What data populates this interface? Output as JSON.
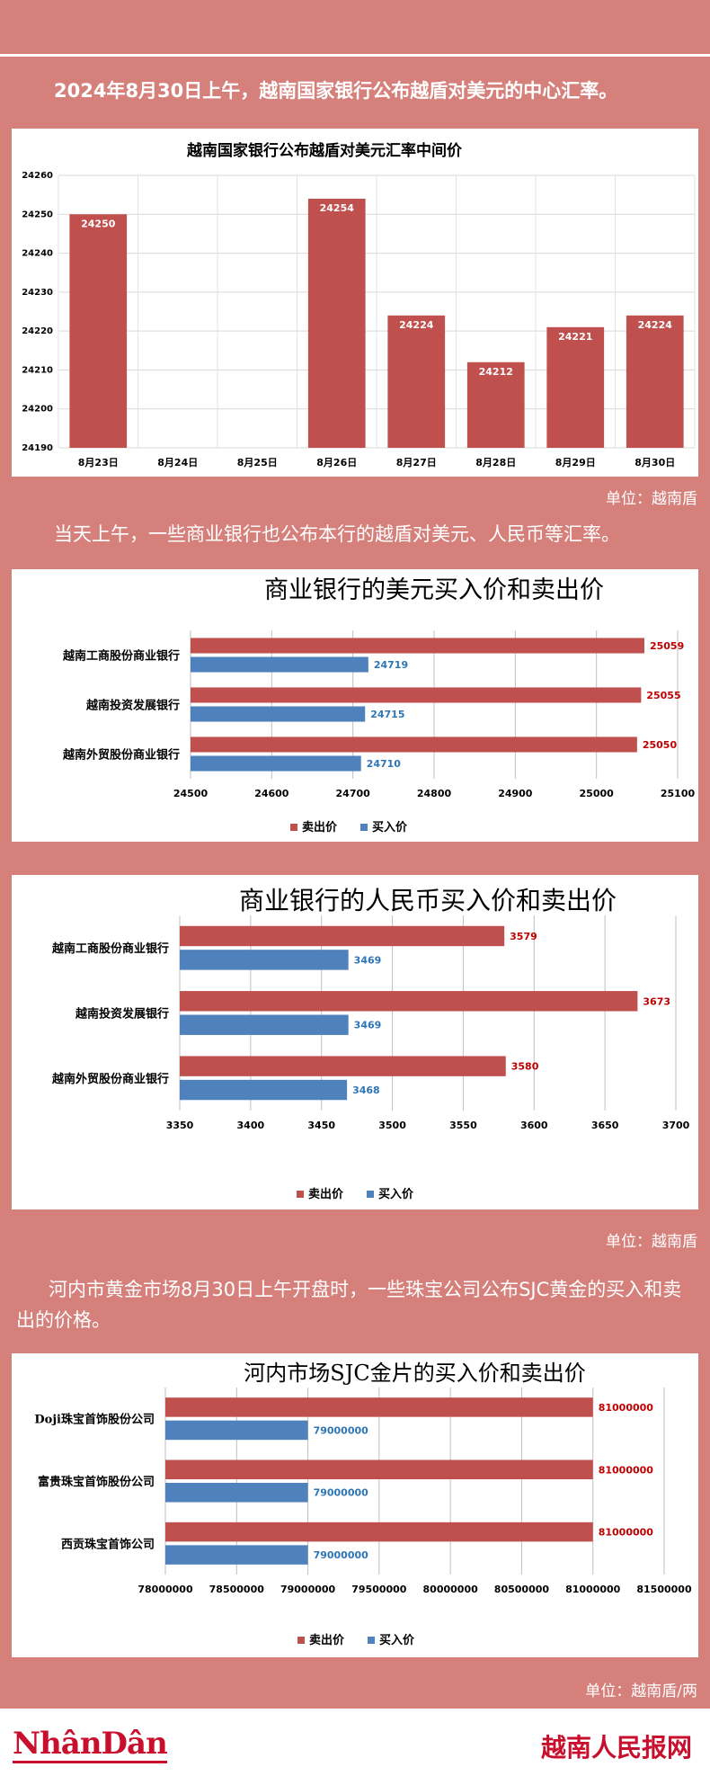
{
  "paragraphs": {
    "p1": "2024年8月30日上午，越南国家银行公布越盾对美元的中心汇率。",
    "p2": "当天上午，一些商业银行也公布本行的越盾对美元、人民币等汇率。",
    "p3": "河内市黄金市场8月30日上午开盘时，一些珠宝公司公布SJC黄金的买入和卖出的价格。"
  },
  "units": {
    "u1": "单位：越南盾",
    "u2": "单位：越南盾",
    "u3": "单位：越南盾/两"
  },
  "footer": {
    "logo_left": "NhânDân",
    "logo_right": "越南人民报网"
  },
  "colors": {
    "bar_red": "#c0504d",
    "bar_blue": "#4f81bd",
    "background": "#d6807c"
  },
  "chart_data": [
    {
      "type": "bar",
      "title": "越南国家银行公布越盾对美元汇率中间价",
      "categories": [
        "8月23日",
        "8月24日",
        "8月25日",
        "8月26日",
        "8月27日",
        "8月28日",
        "8月29日",
        "8月30日"
      ],
      "values": [
        24250,
        null,
        null,
        24254,
        24224,
        24212,
        24221,
        24224
      ],
      "ylim": [
        24190,
        24260
      ],
      "yticks": [
        24190,
        24200,
        24210,
        24220,
        24230,
        24240,
        24250,
        24260
      ],
      "grid": true,
      "legend": "none"
    },
    {
      "type": "bar",
      "orientation": "horizontal",
      "title": "商业银行的美元买入价和卖出价",
      "categories": [
        "越南工商股份商业银行",
        "越南投资发展银行",
        "越南外贸股份商业银行"
      ],
      "series": [
        {
          "name": "卖出价",
          "values": [
            25059,
            25055,
            25050
          ]
        },
        {
          "name": "买入价",
          "values": [
            24719,
            24715,
            24710
          ]
        }
      ],
      "xlim": [
        24500,
        25100
      ],
      "xticks": [
        24500,
        24600,
        24700,
        24800,
        24900,
        25000,
        25100
      ],
      "grid": true,
      "legend": "bottom"
    },
    {
      "type": "bar",
      "orientation": "horizontal",
      "title": "商业银行的人民币买入价和卖出价",
      "categories": [
        "越南工商股份商业银行",
        "越南投资发展银行",
        "越南外贸股份商业银行"
      ],
      "series": [
        {
          "name": "卖出价",
          "values": [
            3579,
            3673,
            3580
          ]
        },
        {
          "name": "买入价",
          "values": [
            3469,
            3469,
            3468
          ]
        }
      ],
      "xlim": [
        3350,
        3700
      ],
      "xticks": [
        3350,
        3400,
        3450,
        3500,
        3550,
        3600,
        3650,
        3700
      ],
      "grid": true,
      "legend": "bottom"
    },
    {
      "type": "bar",
      "orientation": "horizontal",
      "title": "河内市场SJC金片的买入价和卖出价",
      "categories": [
        "Doji珠宝首饰股份公司",
        "富贵珠宝首饰股份公司",
        "西贡珠宝首饰公司"
      ],
      "series": [
        {
          "name": "卖出价",
          "values": [
            81000000,
            81000000,
            81000000
          ]
        },
        {
          "name": "买入价",
          "values": [
            79000000,
            79000000,
            79000000
          ]
        }
      ],
      "xlim": [
        78000000,
        81500000
      ],
      "xticks": [
        78000000,
        78500000,
        79000000,
        79500000,
        80000000,
        80500000,
        81000000,
        81500000
      ],
      "grid": true,
      "legend": "bottom"
    }
  ]
}
